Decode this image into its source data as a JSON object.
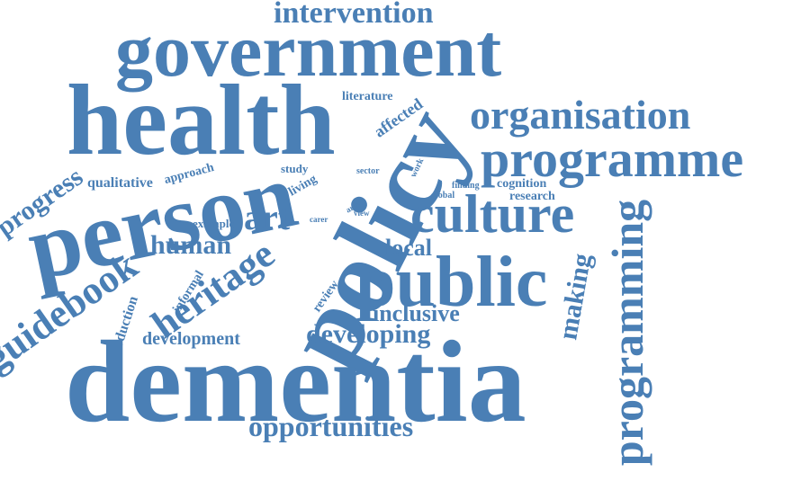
{
  "colors": {
    "word": "#4a7fb5",
    "background": "#ffffff"
  },
  "words": {
    "dementia": "dementia",
    "policy": "policy",
    "health": "health",
    "government": "government",
    "person": "person",
    "public": "public",
    "programme": "programme",
    "programming": "programming",
    "culture": "culture",
    "organisation": "organisation",
    "guidebook": "guidebook",
    "heritage": "heritage",
    "intervention": "intervention",
    "opportunities": "opportunities",
    "art": "art",
    "human": "human",
    "making": "making",
    "inclusive": "inclusive",
    "developing": "developing",
    "local": "local",
    "progress": "progress",
    "development": "development",
    "affected": "affected",
    "literature": "literature",
    "approach": "approach",
    "qualitative": "qualitative",
    "production": "production",
    "informal": "informal",
    "review": "review",
    "living": "living",
    "study": "study",
    "example": "example",
    "sector": "sector",
    "work": "work",
    "finding": "finding",
    "cognition": "cognition",
    "research": "research",
    "global": "global",
    "carer": "carer",
    "area": "area",
    "view": "view"
  }
}
